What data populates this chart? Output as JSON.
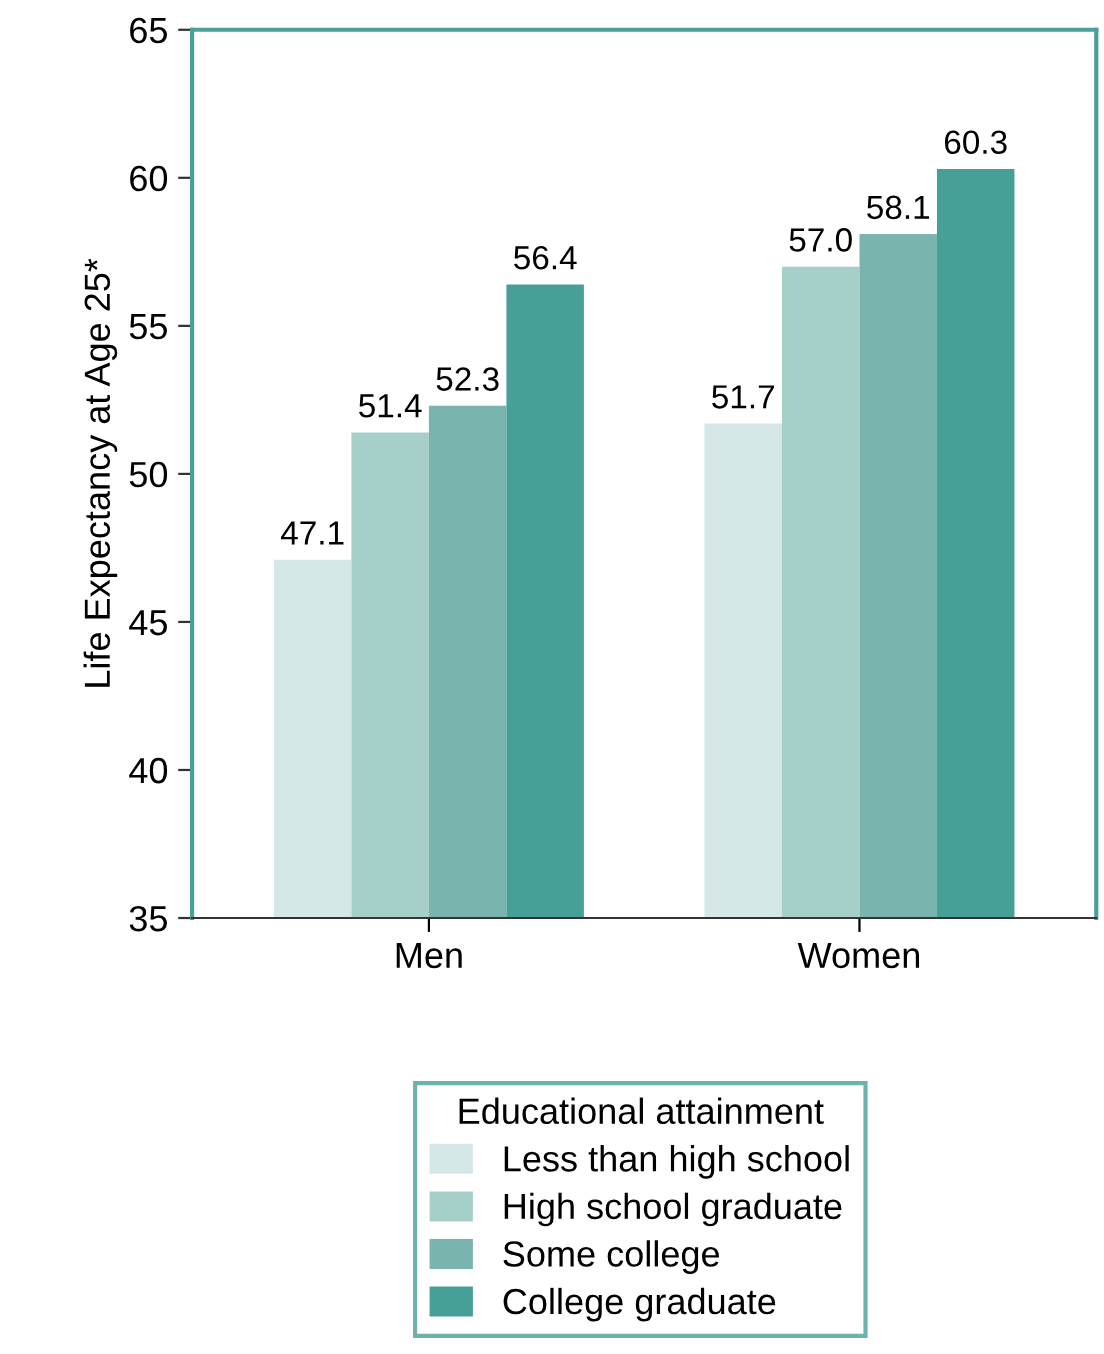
{
  "chart_data": {
    "type": "bar",
    "ylabel": "Life Expectancy at Age 25*",
    "legend_title": "Educational attainment",
    "categories": [
      "Men",
      "Women"
    ],
    "series": [
      {
        "name": "Less than high school",
        "color": "#d5e7e7",
        "values": [
          47.1,
          51.7
        ],
        "value_labels": [
          "47.1",
          "51.7"
        ]
      },
      {
        "name": "High school graduate",
        "color": "#a7cfca",
        "values": [
          51.4,
          57.0
        ],
        "value_labels": [
          "51.4",
          "57.0"
        ]
      },
      {
        "name": "Some college",
        "color": "#79b4af",
        "values": [
          52.3,
          58.1
        ],
        "value_labels": [
          "52.3",
          "58.1"
        ]
      },
      {
        "name": "College graduate",
        "color": "#46a098",
        "values": [
          56.4,
          60.3
        ],
        "value_labels": [
          "56.4",
          "60.3"
        ]
      }
    ],
    "ylim": [
      35,
      65
    ],
    "yticks": [
      35,
      40,
      45,
      50,
      55,
      60,
      65
    ],
    "grid": false,
    "legend": "bottom"
  }
}
